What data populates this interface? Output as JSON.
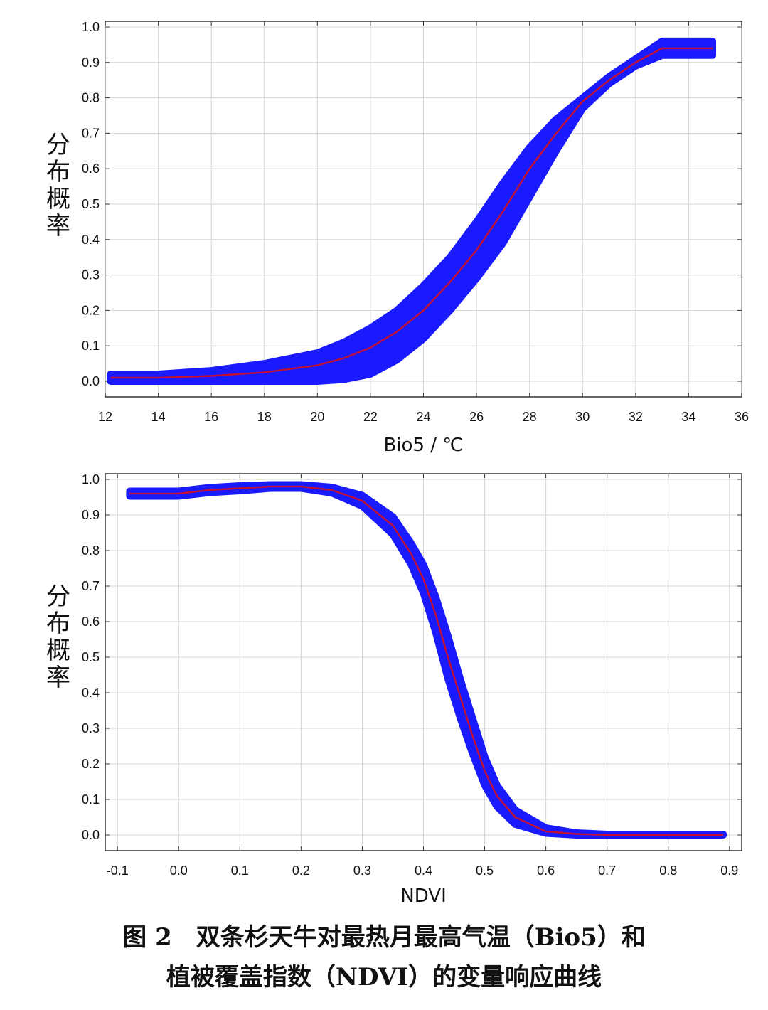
{
  "chart_data": [
    {
      "type": "line",
      "xlabel": "Bio5 / ℃",
      "ylabel": "分布概率",
      "xlim": [
        12,
        36
      ],
      "ylim": [
        0.0,
        1.0
      ],
      "xticks": [
        12,
        14,
        16,
        18,
        20,
        22,
        24,
        26,
        28,
        30,
        32,
        34,
        36
      ],
      "yticks": [
        0.0,
        0.1,
        0.2,
        0.3,
        0.4,
        0.5,
        0.6,
        0.7,
        0.8,
        0.9,
        1.0
      ],
      "grid": true,
      "series": [
        {
          "role": "mean",
          "color": "#c0103a",
          "x": [
            12.2,
            14,
            16,
            18,
            20,
            21,
            22,
            23,
            24,
            25,
            26,
            27,
            28,
            29,
            30,
            31,
            32,
            33,
            34,
            34.9
          ],
          "y": [
            0.01,
            0.01,
            0.015,
            0.025,
            0.045,
            0.065,
            0.095,
            0.14,
            0.2,
            0.28,
            0.37,
            0.48,
            0.6,
            0.7,
            0.79,
            0.85,
            0.9,
            0.94,
            0.94,
            0.94
          ]
        },
        {
          "role": "band-upper",
          "color": "#1a1aff",
          "x": [
            12.2,
            14,
            16,
            18,
            20,
            21,
            22,
            23,
            24,
            25,
            26,
            27,
            28,
            29,
            30,
            31,
            32,
            33,
            34,
            34.9
          ],
          "y": [
            0.02,
            0.02,
            0.03,
            0.05,
            0.08,
            0.11,
            0.15,
            0.2,
            0.27,
            0.35,
            0.45,
            0.56,
            0.66,
            0.74,
            0.8,
            0.86,
            0.91,
            0.96,
            0.96,
            0.96
          ]
        },
        {
          "role": "band-lower",
          "color": "#1a1aff",
          "x": [
            12.2,
            14,
            16,
            18,
            20,
            21,
            22,
            23,
            24,
            25,
            26,
            27,
            28,
            29,
            30,
            31,
            32,
            33,
            34,
            34.9
          ],
          "y": [
            0.0,
            0.0,
            0.0,
            0.0,
            0.0,
            0.005,
            0.02,
            0.06,
            0.12,
            0.2,
            0.29,
            0.39,
            0.52,
            0.65,
            0.77,
            0.84,
            0.89,
            0.92,
            0.92,
            0.92
          ]
        }
      ]
    },
    {
      "type": "line",
      "xlabel": "NDVI",
      "ylabel": "分布概率",
      "xlim": [
        -0.12,
        0.92
      ],
      "ylim": [
        0.0,
        1.0
      ],
      "xticks": [
        -0.1,
        0.0,
        0.1,
        0.2,
        0.3,
        0.4,
        0.5,
        0.6,
        0.7,
        0.8,
        0.9
      ],
      "yticks": [
        0.0,
        0.1,
        0.2,
        0.3,
        0.4,
        0.5,
        0.6,
        0.7,
        0.8,
        0.9,
        1.0
      ],
      "grid": true,
      "series": [
        {
          "role": "mean",
          "color": "#c0103a",
          "x": [
            -0.08,
            0.0,
            0.05,
            0.1,
            0.15,
            0.2,
            0.25,
            0.3,
            0.35,
            0.38,
            0.4,
            0.42,
            0.44,
            0.46,
            0.48,
            0.5,
            0.52,
            0.55,
            0.6,
            0.65,
            0.7,
            0.8,
            0.89
          ],
          "y": [
            0.96,
            0.96,
            0.97,
            0.975,
            0.98,
            0.98,
            0.97,
            0.94,
            0.87,
            0.79,
            0.72,
            0.62,
            0.5,
            0.39,
            0.28,
            0.18,
            0.11,
            0.05,
            0.01,
            0.003,
            0.0,
            0.0,
            0.0
          ]
        },
        {
          "role": "band-upper",
          "color": "#1a1aff",
          "x": [
            -0.08,
            0.0,
            0.05,
            0.1,
            0.15,
            0.2,
            0.25,
            0.3,
            0.35,
            0.38,
            0.4,
            0.42,
            0.44,
            0.46,
            0.48,
            0.5,
            0.52,
            0.55,
            0.6,
            0.65,
            0.7,
            0.8,
            0.89
          ],
          "y": [
            0.967,
            0.967,
            0.977,
            0.982,
            0.985,
            0.985,
            0.978,
            0.955,
            0.895,
            0.82,
            0.76,
            0.67,
            0.56,
            0.44,
            0.33,
            0.22,
            0.14,
            0.07,
            0.02,
            0.006,
            0.002,
            0.002,
            0.002
          ]
        },
        {
          "role": "band-lower",
          "color": "#1a1aff",
          "x": [
            -0.08,
            0.0,
            0.05,
            0.1,
            0.15,
            0.2,
            0.25,
            0.3,
            0.35,
            0.38,
            0.4,
            0.42,
            0.44,
            0.46,
            0.48,
            0.5,
            0.52,
            0.55,
            0.6,
            0.65,
            0.7,
            0.8,
            0.89
          ],
          "y": [
            0.953,
            0.953,
            0.963,
            0.968,
            0.975,
            0.975,
            0.962,
            0.925,
            0.845,
            0.76,
            0.68,
            0.57,
            0.44,
            0.33,
            0.23,
            0.14,
            0.08,
            0.03,
            0.005,
            0.0,
            0.0,
            0.0,
            0.0
          ]
        }
      ]
    }
  ],
  "caption": {
    "line1": "图 2　双条杉天牛对最热月最高气温（Bio5）和",
    "line2": "植被覆盖指数（NDVI）的变量响应曲线"
  }
}
